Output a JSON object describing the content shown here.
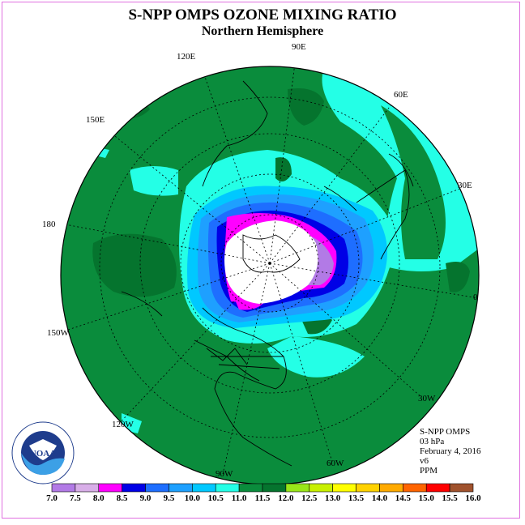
{
  "title": "S-NPP OMPS OZONE MIXING RATIO",
  "subtitle": "Northern Hemisphere",
  "longitude_labels": {
    "e90": "90E",
    "e120": "120E",
    "e60": "60E",
    "e150": "150E",
    "e30": "30E",
    "d180": "180",
    "d0": "0",
    "w150": "150W",
    "w30": "30W",
    "w120": "120W",
    "w60": "60W",
    "w90": "90W"
  },
  "info": {
    "instrument": "S-NPP OMPS",
    "level": "03 hPa",
    "date": "February 4, 2016",
    "version": "v6",
    "units": "PPM"
  },
  "logo": {
    "text": "NOAA"
  },
  "colorbar": {
    "ticks": [
      "7.0",
      "7.5",
      "8.0",
      "8.5",
      "9.0",
      "9.5",
      "10.0",
      "10.5",
      "11.0",
      "11.5",
      "12.0",
      "12.5",
      "13.0",
      "13.5",
      "14.0",
      "14.5",
      "15.0",
      "15.5",
      "16.0"
    ],
    "colors": [
      "#b27ae6",
      "#d8aee8",
      "#ff00ff",
      "#0000e6",
      "#1e6eff",
      "#1ea0ff",
      "#00c8ff",
      "#24ffe6",
      "#0a8c3c",
      "#05742e",
      "#99e619",
      "#c8f000",
      "#ffff00",
      "#ffd200",
      "#ffaa00",
      "#ff6400",
      "#ff0000",
      "#a0522d"
    ]
  },
  "map_colors": {
    "ocean_background": "#0a8c3c",
    "dark_green": "#05742e",
    "cyan": "#24ffe6",
    "polar_night": "#ffffff"
  }
}
